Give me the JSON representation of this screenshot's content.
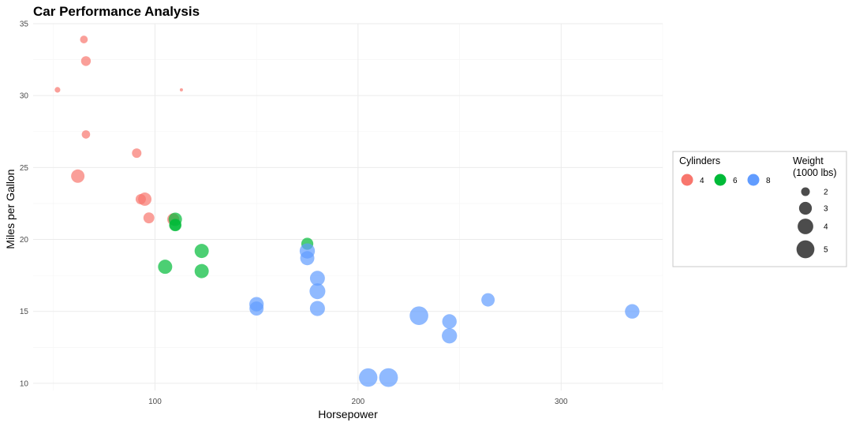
{
  "chart_data": {
    "type": "scatter",
    "title": "Car Performance Analysis",
    "xlabel": "Horsepower",
    "ylabel": "Miles per Gallon",
    "xlim": [
      40,
      350
    ],
    "ylim": [
      9.5,
      35
    ],
    "x_ticks": [
      100,
      200,
      300
    ],
    "y_ticks": [
      10,
      15,
      20,
      25,
      30,
      35
    ],
    "grid": true,
    "colors": {
      "4": "#F8766D",
      "6": "#00BA38",
      "8": "#619CFF"
    },
    "legend_color": {
      "title": "Cylinders",
      "entries": [
        {
          "label": "4",
          "color": "#F8766D"
        },
        {
          "label": "6",
          "color": "#00BA38"
        },
        {
          "label": "8",
          "color": "#619CFF"
        }
      ]
    },
    "legend_size": {
      "title_line1": "Weight",
      "title_line2": "(1000 lbs)",
      "entries": [
        {
          "label": "2",
          "value": 2
        },
        {
          "label": "3",
          "value": 3
        },
        {
          "label": "4",
          "value": 4
        },
        {
          "label": "5",
          "value": 5
        }
      ]
    },
    "weight_range": [
      1.5,
      5.5
    ],
    "points": [
      {
        "hp": 65,
        "mpg": 33.9,
        "cyl": "4",
        "wt": 1.84
      },
      {
        "hp": 66,
        "mpg": 32.4,
        "cyl": "4",
        "wt": 2.2
      },
      {
        "hp": 52,
        "mpg": 30.4,
        "cyl": "4",
        "wt": 1.6
      },
      {
        "hp": 113,
        "mpg": 30.4,
        "cyl": "4",
        "wt": 1.3
      },
      {
        "hp": 66,
        "mpg": 27.3,
        "cyl": "4",
        "wt": 1.94
      },
      {
        "hp": 91,
        "mpg": 26.0,
        "cyl": "4",
        "wt": 2.14
      },
      {
        "hp": 62,
        "mpg": 24.4,
        "cyl": "4",
        "wt": 3.19
      },
      {
        "hp": 93,
        "mpg": 22.8,
        "cyl": "4",
        "wt": 2.32
      },
      {
        "hp": 95,
        "mpg": 22.8,
        "cyl": "4",
        "wt": 3.15
      },
      {
        "hp": 97,
        "mpg": 21.5,
        "cyl": "4",
        "wt": 2.47
      },
      {
        "hp": 109,
        "mpg": 21.4,
        "cyl": "4",
        "wt": 2.78
      },
      {
        "hp": 110,
        "mpg": 21.4,
        "cyl": "6",
        "wt": 3.2
      },
      {
        "hp": 110,
        "mpg": 21.0,
        "cyl": "6",
        "wt": 2.88
      },
      {
        "hp": 110,
        "mpg": 21.0,
        "cyl": "6",
        "wt": 2.62
      },
      {
        "hp": 105,
        "mpg": 18.1,
        "cyl": "6",
        "wt": 3.46
      },
      {
        "hp": 123,
        "mpg": 19.2,
        "cyl": "6",
        "wt": 3.44
      },
      {
        "hp": 123,
        "mpg": 17.8,
        "cyl": "6",
        "wt": 3.44
      },
      {
        "hp": 175,
        "mpg": 19.7,
        "cyl": "6",
        "wt": 2.77
      },
      {
        "hp": 175,
        "mpg": 19.2,
        "cyl": "8",
        "wt": 3.85
      },
      {
        "hp": 175,
        "mpg": 18.7,
        "cyl": "8",
        "wt": 3.44
      },
      {
        "hp": 150,
        "mpg": 15.5,
        "cyl": "8",
        "wt": 3.52
      },
      {
        "hp": 150,
        "mpg": 15.2,
        "cyl": "8",
        "wt": 3.44
      },
      {
        "hp": 180,
        "mpg": 17.3,
        "cyl": "8",
        "wt": 3.73
      },
      {
        "hp": 180,
        "mpg": 16.4,
        "cyl": "8",
        "wt": 4.07
      },
      {
        "hp": 180,
        "mpg": 15.2,
        "cyl": "8",
        "wt": 3.78
      },
      {
        "hp": 205,
        "mpg": 10.4,
        "cyl": "8",
        "wt": 5.25
      },
      {
        "hp": 215,
        "mpg": 10.4,
        "cyl": "8",
        "wt": 5.42
      },
      {
        "hp": 230,
        "mpg": 14.7,
        "cyl": "8",
        "wt": 5.35
      },
      {
        "hp": 245,
        "mpg": 14.3,
        "cyl": "8",
        "wt": 3.57
      },
      {
        "hp": 245,
        "mpg": 13.3,
        "cyl": "8",
        "wt": 3.84
      },
      {
        "hp": 264,
        "mpg": 15.8,
        "cyl": "8",
        "wt": 3.17
      },
      {
        "hp": 335,
        "mpg": 15.0,
        "cyl": "8",
        "wt": 3.57
      }
    ]
  }
}
